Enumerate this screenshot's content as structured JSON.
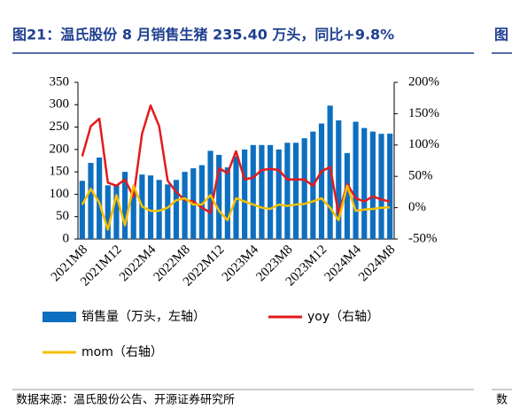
{
  "chart_data": {
    "type": "bar-line",
    "title": "图21：温氏股份 8 月销售生猪 235.40 万头，同比+9.8%",
    "source": "数据来源：温氏股份公告、开源证券研究所",
    "fragments": [
      "图",
      "数"
    ],
    "categories": [
      "2021M8",
      null,
      null,
      null,
      "2021M12",
      null,
      null,
      null,
      "2022M4",
      null,
      null,
      null,
      "2022M8",
      null,
      null,
      null,
      "2022M12",
      null,
      null,
      null,
      "2023M4",
      null,
      null,
      null,
      "2023M8",
      null,
      null,
      null,
      "2023M12",
      null,
      null,
      null,
      "2024M4",
      null,
      null,
      null,
      "2024M8"
    ],
    "series": [
      {
        "name": "销售量（万头，左轴）",
        "color": "#0e6fc0",
        "axis": "y",
        "values": [
          130,
          170,
          182,
          120,
          120,
          150,
          107,
          144,
          142,
          132,
          122,
          132,
          150,
          158,
          165,
          197,
          188,
          160,
          185,
          200,
          210,
          210,
          210,
          200,
          215,
          215,
          225,
          240,
          258,
          298,
          265,
          192,
          262,
          248,
          240,
          235,
          235.4
        ]
      },
      {
        "name": "yoy（右轴）",
        "color": "#e31a1c",
        "axis": "y2",
        "values": [
          82,
          130,
          142,
          40,
          35,
          45,
          17,
          118,
          163,
          130,
          43,
          25,
          12,
          10,
          0,
          -8,
          63,
          55,
          90,
          45,
          48,
          60,
          62,
          60,
          45,
          45,
          45,
          35,
          58,
          65,
          -10,
          38,
          15,
          10,
          18,
          13,
          9.8
        ]
      },
      {
        "name": "mom（右轴）",
        "color": "#f5c000",
        "axis": "y2",
        "values": [
          5,
          30,
          8,
          -35,
          20,
          -28,
          35,
          2,
          -5,
          -5,
          0,
          12,
          15,
          5,
          5,
          20,
          -5,
          -20,
          15,
          10,
          5,
          0,
          -2,
          5,
          3,
          5,
          6,
          10,
          15,
          0,
          -20,
          35,
          -5,
          -3,
          -2,
          0,
          0.4
        ]
      }
    ],
    "ylim": [
      0,
      350
    ],
    "yticks": [
      0,
      50,
      100,
      150,
      200,
      250,
      300,
      350
    ],
    "y2lim": [
      -50,
      200
    ],
    "y2ticks": [
      {
        "value": -50,
        "label": "-50%"
      },
      {
        "value": 0,
        "label": "0%"
      },
      {
        "value": 50,
        "label": "50%"
      },
      {
        "value": 100,
        "label": "100%"
      },
      {
        "value": 150,
        "label": "150%"
      },
      {
        "value": 200,
        "label": "200%"
      }
    ]
  }
}
